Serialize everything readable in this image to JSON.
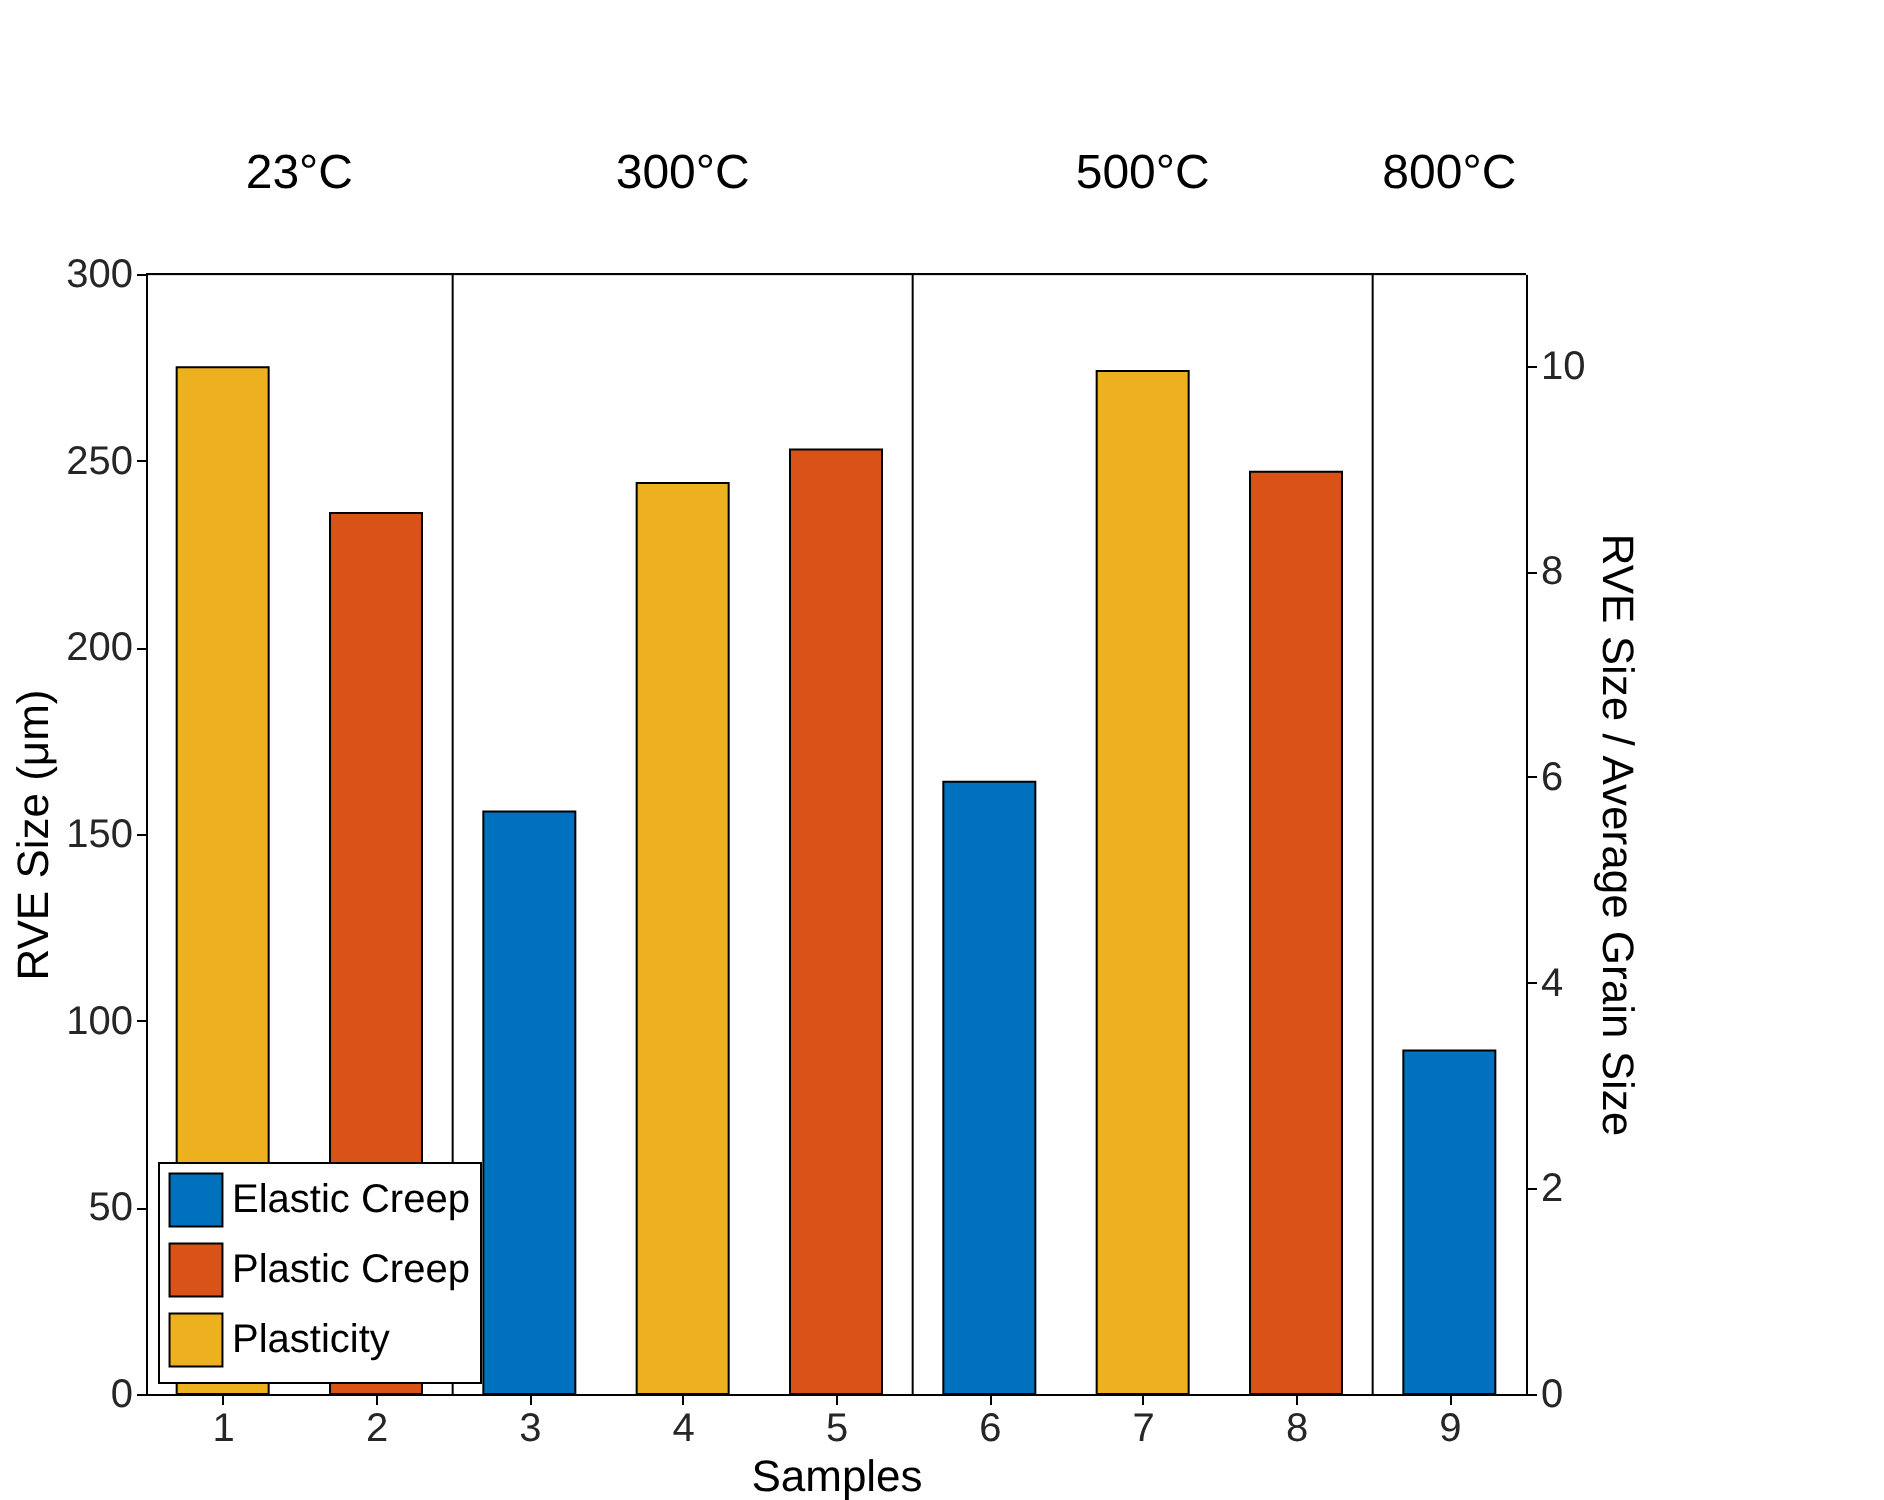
{
  "chart_data": {
    "type": "bar",
    "xlabel": "Samples",
    "ylabel": "RVE Size (μm)",
    "y2label": "RVE Size / Average Grain Size",
    "x": [
      1,
      2,
      3,
      4,
      5,
      6,
      7,
      8,
      9
    ],
    "series": [
      {
        "name": "Elastic Creep",
        "color": "#0072bd",
        "values": [
          null,
          null,
          156,
          null,
          null,
          164,
          null,
          null,
          92
        ]
      },
      {
        "name": "Plastic Creep",
        "color": "#d95319",
        "values": [
          null,
          236,
          null,
          null,
          253,
          null,
          null,
          247,
          null
        ]
      },
      {
        "name": "Plasticity",
        "color": "#edb120",
        "values": [
          275,
          null,
          null,
          244,
          null,
          null,
          274,
          null,
          null
        ]
      }
    ],
    "xlim": [
      0.5,
      9.5
    ],
    "xticks": [
      1,
      2,
      3,
      4,
      5,
      6,
      7,
      8,
      9
    ],
    "ylim": [
      0,
      300
    ],
    "yticks": [
      0,
      50,
      100,
      150,
      200,
      250,
      300
    ],
    "y2lim": [
      0,
      10.89
    ],
    "y2ticks": [
      0,
      2,
      4,
      6,
      8,
      10
    ],
    "ref_lines": [
      {
        "axis": "x",
        "value": 2.5,
        "color": "#000000"
      },
      {
        "axis": "x",
        "value": 5.5,
        "color": "#000000"
      },
      {
        "axis": "x",
        "value": 8.5,
        "color": "#000000"
      }
    ],
    "annotations": [
      "23°C",
      "300°C",
      "500°C",
      "800°C"
    ],
    "legend": "bottom left",
    "grid": false
  }
}
